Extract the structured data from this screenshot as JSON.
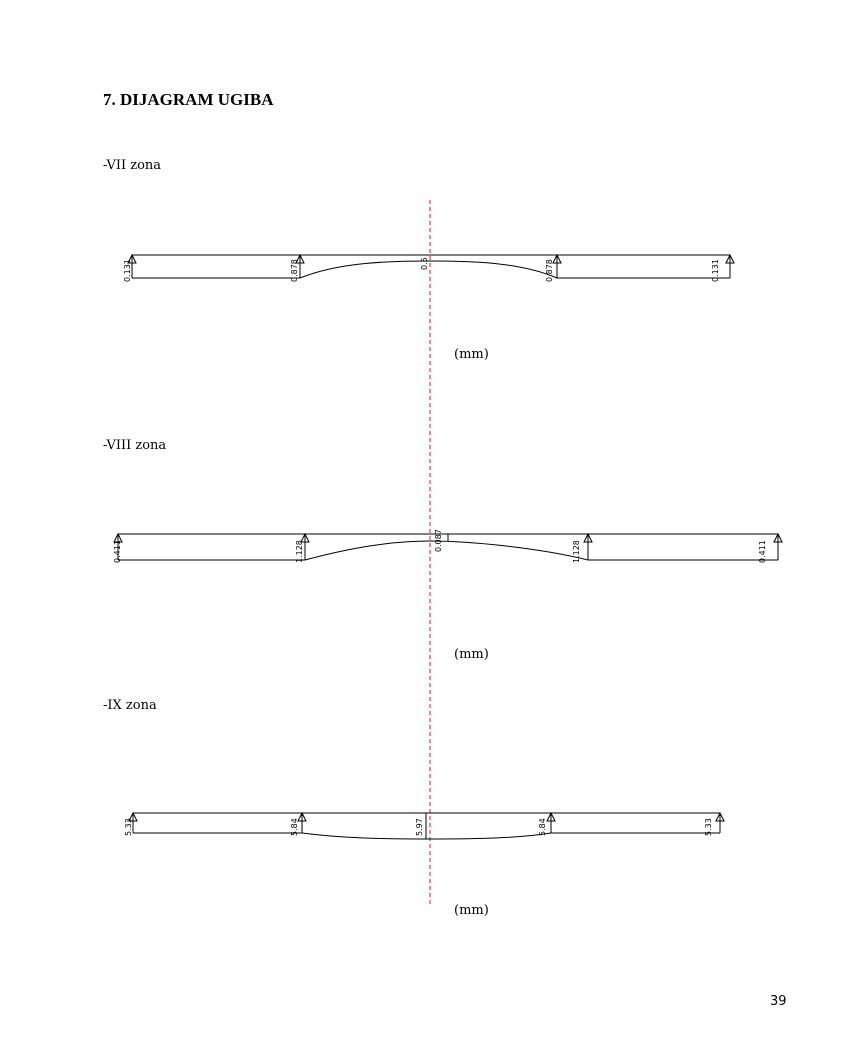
{
  "heading": "7.  DIJAGRAM UGIBA",
  "page_number": "39",
  "diagrams": [
    {
      "zone": "-VII zona",
      "unit": "(mm)",
      "labels": [
        "0.131",
        "0.878",
        "0.5",
        "0.878",
        "0.131"
      ]
    },
    {
      "zone": "-VIII zona",
      "unit": "(mm)",
      "labels": [
        "0.411",
        "1.128",
        "0.087",
        "1.128",
        "0.411"
      ]
    },
    {
      "zone": "-IX  zona",
      "unit": "(mm)",
      "labels": [
        "5.33",
        "5.84",
        "5.97",
        "5.84",
        "5.33"
      ]
    }
  ],
  "colors": {
    "axis": "#cc2222",
    "line": "#000000"
  }
}
